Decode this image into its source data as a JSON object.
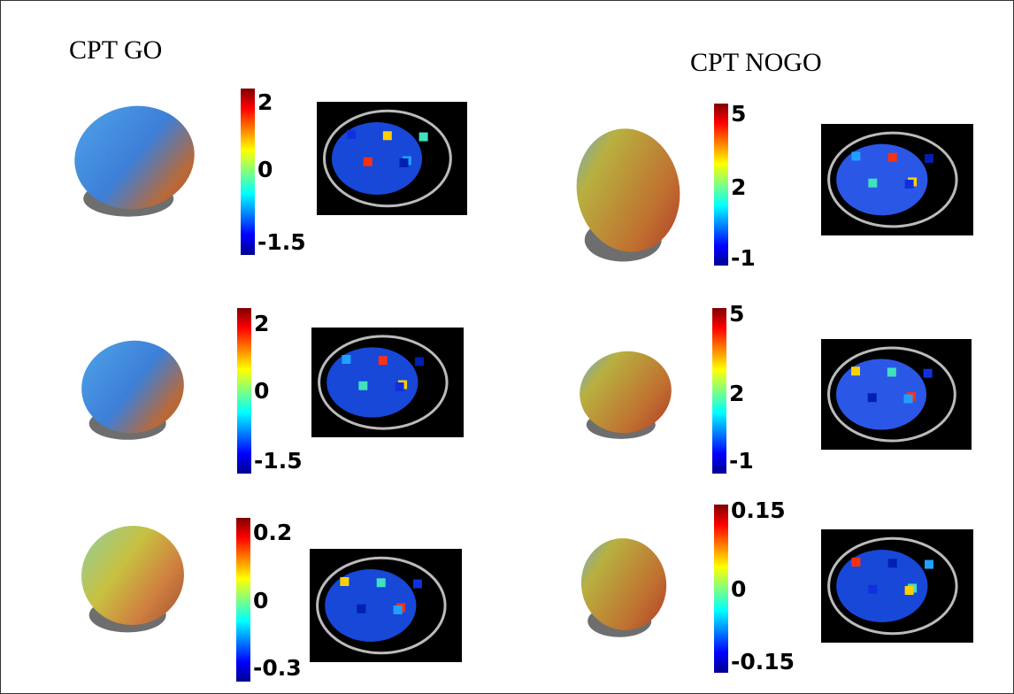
{
  "panels": [
    {
      "title": "CPT GO",
      "rows": [
        {
          "labels": [
            "2",
            "0",
            "-1.5"
          ]
        },
        {
          "labels": [
            "2",
            "0",
            "-1.5"
          ]
        },
        {
          "labels": [
            "0.2",
            "0",
            "-0.3"
          ]
        }
      ]
    },
    {
      "title": "CPT NOGO",
      "rows": [
        {
          "labels": [
            "5",
            "2",
            "-1"
          ]
        },
        {
          "labels": [
            "5",
            "2",
            "-1"
          ]
        },
        {
          "labels": [
            "0.15",
            "0",
            "-0.15"
          ]
        }
      ]
    }
  ]
}
